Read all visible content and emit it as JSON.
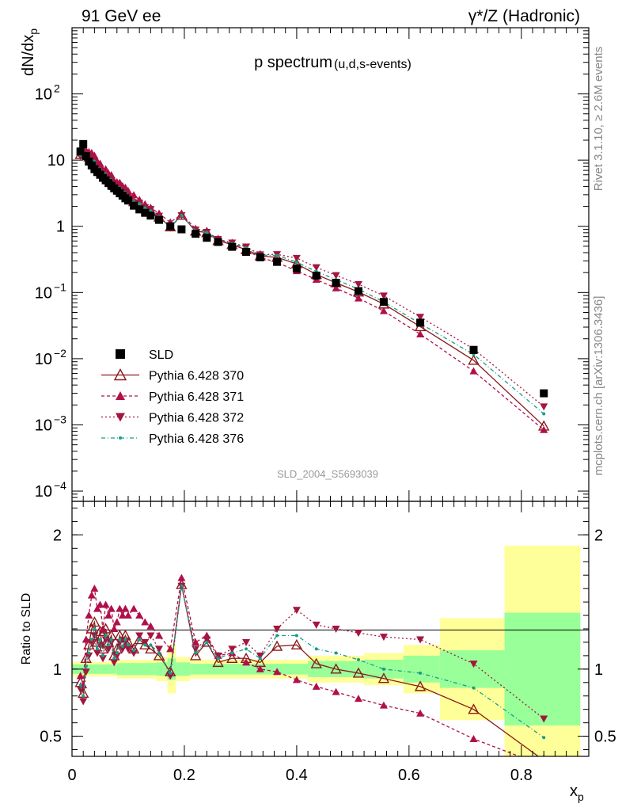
{
  "header": {
    "left": "91 GeV ee",
    "right": "γ*/Z (Hadronic)"
  },
  "side": {
    "rivet": "Rivet 3.1.10, ≥ 2.6M events",
    "source": "mcplots.cern.ch [arXiv:1306.3436]"
  },
  "chart_data": {
    "type": "scatter",
    "title": "p spectrum",
    "subtitle": "(u,d,s-events)",
    "xlabel": "x",
    "xlabel_sub": "p",
    "ylabel": "dN/dx",
    "ylabel_sub": "p",
    "ratio_label": "Ratio to SLD",
    "watermark": "SLD_2004_S5693039",
    "xlim": [
      0,
      0.92
    ],
    "ylim": [
      7e-05,
      1000
    ],
    "ratio_ylim": [
      0.35,
      2.25
    ],
    "yscale": "log",
    "xticks": [
      "0",
      "0.2",
      "0.4",
      "0.6",
      "0.8"
    ],
    "yticks": [
      {
        "base": "10",
        "exp": "2"
      },
      {
        "base": "10",
        "exp": ""
      },
      {
        "base": "1",
        "exp": ""
      },
      {
        "base": "10",
        "exp": "−1"
      },
      {
        "base": "10",
        "exp": "−2"
      },
      {
        "base": "10",
        "exp": "−3"
      },
      {
        "base": "10",
        "exp": "−4"
      }
    ],
    "ratio_yticks": [
      "0.5",
      "1",
      "2"
    ],
    "x": [
      0.015,
      0.02,
      0.025,
      0.03,
      0.035,
      0.04,
      0.045,
      0.05,
      0.055,
      0.06,
      0.065,
      0.07,
      0.075,
      0.08,
      0.085,
      0.09,
      0.095,
      0.1,
      0.11,
      0.12,
      0.13,
      0.14,
      0.155,
      0.175,
      0.195,
      0.22,
      0.24,
      0.26,
      0.285,
      0.31,
      0.335,
      0.365,
      0.4,
      0.435,
      0.47,
      0.51,
      0.555,
      0.62,
      0.715,
      0.84
    ],
    "reference_band": [
      {
        "x0": 0.0,
        "x1": 0.08,
        "g": 0.035,
        "y": 0.055
      },
      {
        "x0": 0.08,
        "x1": 0.15,
        "g": 0.045,
        "y": 0.07
      },
      {
        "x0": 0.15,
        "x1": 0.17,
        "g": 0.05,
        "y": 0.09
      },
      {
        "x0": 0.17,
        "x1": 0.185,
        "g": 0.08,
        "y": 0.18
      },
      {
        "x0": 0.185,
        "x1": 0.21,
        "g": 0.05,
        "y": 0.09
      },
      {
        "x0": 0.21,
        "x1": 0.35,
        "g": 0.04,
        "y": 0.07
      },
      {
        "x0": 0.35,
        "x1": 0.42,
        "g": 0.04,
        "y": 0.07
      },
      {
        "x0": 0.42,
        "x1": 0.52,
        "g": 0.06,
        "y": 0.1
      },
      {
        "x0": 0.52,
        "x1": 0.59,
        "g": 0.07,
        "y": 0.12
      },
      {
        "x0": 0.59,
        "x1": 0.655,
        "g": 0.1,
        "y": 0.18
      },
      {
        "x0": 0.655,
        "x1": 0.77,
        "g": 0.14,
        "y": 0.38
      },
      {
        "x0": 0.77,
        "x1": 0.905,
        "g": 0.42,
        "y": 0.92
      }
    ],
    "series": [
      {
        "name": "SLD",
        "color": "#000000",
        "marker": "square",
        "values": [
          13.5,
          17.5,
          11.5,
          9.5,
          8.3,
          7.3,
          6.6,
          6.0,
          5.4,
          4.95,
          4.5,
          4.1,
          3.75,
          3.45,
          3.15,
          2.9,
          2.65,
          2.45,
          2.05,
          1.8,
          1.6,
          1.45,
          1.25,
          1.0,
          0.9,
          0.77,
          0.67,
          0.58,
          0.49,
          0.41,
          0.34,
          0.29,
          0.23,
          0.18,
          0.14,
          0.105,
          0.072,
          0.035,
          0.0135,
          0.003
        ]
      },
      {
        "name": "Pythia 6.428 370",
        "color": "#8b1a1a",
        "marker": "open-triangle",
        "dash": "",
        "ratio": [
          0.9,
          0.82,
          1.08,
          1.18,
          1.3,
          1.35,
          1.2,
          1.28,
          1.15,
          1.3,
          1.2,
          1.25,
          1.1,
          1.15,
          1.25,
          1.2,
          1.25,
          1.2,
          1.15,
          1.22,
          1.18,
          1.15,
          1.1,
          0.98,
          1.63,
          1.1,
          1.2,
          1.05,
          1.08,
          1.08,
          1.05,
          1.17,
          1.18,
          1.04,
          1.0,
          0.97,
          0.93,
          0.87,
          0.7,
          0.32
        ]
      },
      {
        "name": "Pythia 6.428 371",
        "color": "#b0104a",
        "marker": "triangle-up",
        "dash": "4,3",
        "ratio": [
          0.95,
          0.88,
          1.22,
          1.4,
          1.55,
          1.6,
          1.45,
          1.48,
          1.3,
          1.48,
          1.4,
          1.45,
          1.3,
          1.35,
          1.45,
          1.4,
          1.45,
          1.4,
          1.45,
          1.4,
          1.35,
          1.32,
          1.25,
          1.15,
          1.68,
          1.2,
          1.25,
          1.1,
          1.12,
          1.05,
          1.0,
          0.98,
          0.92,
          0.87,
          0.83,
          0.78,
          0.73,
          0.67,
          0.48,
          0.28
        ]
      },
      {
        "name": "Pythia 6.428 372",
        "color": "#a3163d",
        "marker": "triangle-down",
        "dash": "2,3",
        "ratio": [
          0.85,
          0.76,
          0.98,
          1.1,
          1.2,
          1.25,
          1.12,
          1.18,
          1.08,
          1.22,
          1.15,
          1.2,
          1.05,
          1.1,
          1.2,
          1.15,
          1.2,
          1.15,
          1.12,
          1.25,
          1.2,
          1.25,
          1.15,
          0.95,
          1.62,
          1.15,
          1.22,
          1.1,
          1.15,
          1.2,
          1.1,
          1.3,
          1.44,
          1.33,
          1.3,
          1.27,
          1.24,
          1.22,
          1.04,
          0.63
        ]
      },
      {
        "name": "Pythia 6.428 376",
        "color": "#169e8c",
        "marker": "dot",
        "dash": "5,3,1,3",
        "ratio": [
          0.88,
          0.8,
          1.02,
          1.12,
          1.22,
          1.3,
          1.15,
          1.22,
          1.1,
          1.25,
          1.18,
          1.22,
          1.08,
          1.12,
          1.22,
          1.17,
          1.22,
          1.18,
          1.14,
          1.22,
          1.18,
          1.18,
          1.12,
          0.97,
          1.62,
          1.12,
          1.2,
          1.08,
          1.12,
          1.15,
          1.08,
          1.25,
          1.25,
          1.15,
          1.12,
          1.07,
          1.0,
          0.97,
          0.86,
          0.49
        ]
      }
    ]
  }
}
